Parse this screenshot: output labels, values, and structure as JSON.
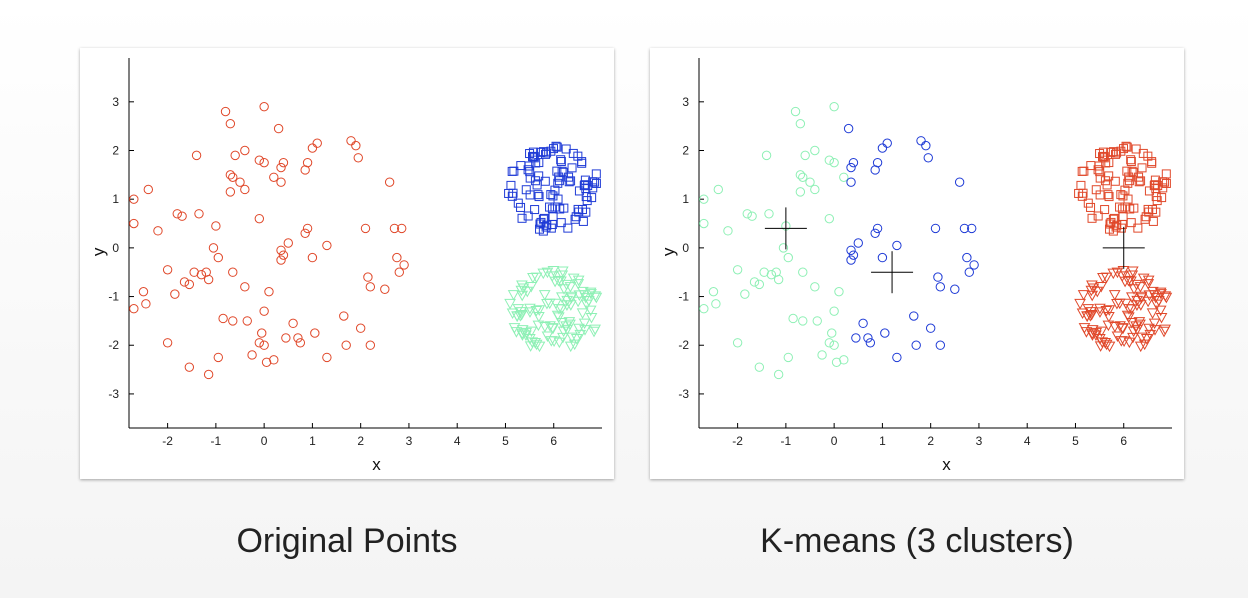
{
  "captions": {
    "left": "Original Points",
    "right": "K-means (3 clusters)"
  },
  "colors": {
    "red": "#e0482a",
    "blue": "#1f3bd6",
    "green": "#8ef0b5",
    "centroid": "#000000"
  },
  "chart_data": [
    {
      "type": "scatter",
      "xlabel": "x",
      "ylabel": "y",
      "xlim": [
        -2.8,
        7.0
      ],
      "ylim": [
        -3.7,
        3.9
      ],
      "xticks": [
        "-2",
        "-1",
        "0",
        "1",
        "2",
        "3",
        "4",
        "5",
        "6"
      ],
      "yticks": [
        "3",
        "2",
        "1",
        "0",
        "-1",
        "-2",
        "-3"
      ],
      "series": [
        {
          "marker": "circle",
          "color": "#e0482a",
          "points": [
            [
              -0.8,
              2.8
            ],
            [
              0.0,
              2.9
            ],
            [
              -0.7,
              2.55
            ],
            [
              0.3,
              2.45
            ],
            [
              1.1,
              2.15
            ],
            [
              1.0,
              2.05
            ],
            [
              1.8,
              2.2
            ],
            [
              1.9,
              2.1
            ],
            [
              -1.4,
              1.9
            ],
            [
              -0.6,
              1.9
            ],
            [
              -0.4,
              2.0
            ],
            [
              -0.1,
              1.8
            ],
            [
              0.0,
              1.75
            ],
            [
              0.4,
              1.75
            ],
            [
              0.35,
              1.65
            ],
            [
              0.9,
              1.75
            ],
            [
              0.85,
              1.6
            ],
            [
              1.95,
              1.85
            ],
            [
              -0.7,
              1.5
            ],
            [
              -0.65,
              1.45
            ],
            [
              -0.5,
              1.35
            ],
            [
              -0.4,
              1.2
            ],
            [
              -0.7,
              1.15
            ],
            [
              0.2,
              1.45
            ],
            [
              0.35,
              1.35
            ],
            [
              2.6,
              1.35
            ],
            [
              -2.4,
              1.2
            ],
            [
              -2.7,
              1.0
            ],
            [
              -1.8,
              0.7
            ],
            [
              -1.7,
              0.65
            ],
            [
              -1.35,
              0.7
            ],
            [
              -1.0,
              0.45
            ],
            [
              -0.1,
              0.6
            ],
            [
              -2.7,
              0.5
            ],
            [
              -2.2,
              0.35
            ],
            [
              0.85,
              0.3
            ],
            [
              0.9,
              0.4
            ],
            [
              2.1,
              0.4
            ],
            [
              2.7,
              0.4
            ],
            [
              2.85,
              0.4
            ],
            [
              1.3,
              0.05
            ],
            [
              0.5,
              0.1
            ],
            [
              0.35,
              -0.05
            ],
            [
              -1.05,
              0.0
            ],
            [
              -0.95,
              -0.2
            ],
            [
              0.4,
              -0.15
            ],
            [
              0.35,
              -0.25
            ],
            [
              1.0,
              -0.2
            ],
            [
              2.75,
              -0.2
            ],
            [
              2.9,
              -0.35
            ],
            [
              2.8,
              -0.5
            ],
            [
              -2.0,
              -0.45
            ],
            [
              -1.45,
              -0.5
            ],
            [
              -1.3,
              -0.55
            ],
            [
              -1.2,
              -0.5
            ],
            [
              -1.15,
              -0.65
            ],
            [
              -0.65,
              -0.5
            ],
            [
              -1.55,
              -0.75
            ],
            [
              -1.65,
              -0.7
            ],
            [
              -0.4,
              -0.8
            ],
            [
              -1.85,
              -0.95
            ],
            [
              2.15,
              -0.6
            ],
            [
              2.2,
              -0.8
            ],
            [
              0.1,
              -0.9
            ],
            [
              -2.5,
              -0.9
            ],
            [
              -2.7,
              -1.25
            ],
            [
              -2.45,
              -1.15
            ],
            [
              2.5,
              -0.85
            ],
            [
              -0.35,
              -1.5
            ],
            [
              -0.65,
              -1.5
            ],
            [
              -0.85,
              -1.45
            ],
            [
              0.0,
              -1.3
            ],
            [
              0.6,
              -1.55
            ],
            [
              1.65,
              -1.4
            ],
            [
              2.0,
              -1.65
            ],
            [
              1.05,
              -1.75
            ],
            [
              0.45,
              -1.85
            ],
            [
              -0.05,
              -1.75
            ],
            [
              -2.0,
              -1.95
            ],
            [
              -0.1,
              -1.95
            ],
            [
              0.0,
              -2.0
            ],
            [
              0.7,
              -1.85
            ],
            [
              0.75,
              -1.95
            ],
            [
              1.7,
              -2.0
            ],
            [
              2.2,
              -2.0
            ],
            [
              -0.95,
              -2.25
            ],
            [
              -0.25,
              -2.2
            ],
            [
              0.05,
              -2.35
            ],
            [
              0.2,
              -2.3
            ],
            [
              1.3,
              -2.25
            ],
            [
              -1.55,
              -2.45
            ],
            [
              -1.15,
              -2.6
            ]
          ]
        },
        {
          "marker": "square",
          "color": "#1f3bd6",
          "center": [
            6.0,
            1.2
          ],
          "radius": [
            0.95,
            0.9
          ],
          "count": 100,
          "seed": 3
        },
        {
          "marker": "triangle-down",
          "color": "#8ef0b5",
          "center": [
            6.0,
            -1.3
          ],
          "radius": [
            0.98,
            0.85
          ],
          "count": 105,
          "seed": 7
        }
      ]
    },
    {
      "type": "scatter",
      "xlabel": "x",
      "ylabel": "y",
      "xlim": [
        -2.8,
        7.0
      ],
      "ylim": [
        -3.7,
        3.9
      ],
      "xticks": [
        "-2",
        "-1",
        "0",
        "1",
        "2",
        "3",
        "4",
        "5",
        "6"
      ],
      "yticks": [
        "3",
        "2",
        "1",
        "0",
        "-1",
        "-2",
        "-3"
      ],
      "centroids": [
        [
          -1.0,
          0.4
        ],
        [
          1.2,
          -0.5
        ],
        [
          6.0,
          0.0
        ]
      ],
      "series": [
        {
          "marker": "circle",
          "color": "#8ef0b5",
          "xmax": 0.25,
          "from": 0
        },
        {
          "marker": "circle",
          "color": "#1f3bd6",
          "xmin": 0.25,
          "from": 0
        },
        {
          "marker": "square",
          "color": "#e0482a",
          "center": [
            6.0,
            1.2
          ],
          "radius": [
            0.95,
            0.9
          ],
          "count": 100,
          "seed": 3
        },
        {
          "marker": "triangle-down",
          "color": "#e0482a",
          "center": [
            6.0,
            -1.3
          ],
          "radius": [
            0.98,
            0.85
          ],
          "count": 105,
          "seed": 7
        }
      ]
    }
  ]
}
